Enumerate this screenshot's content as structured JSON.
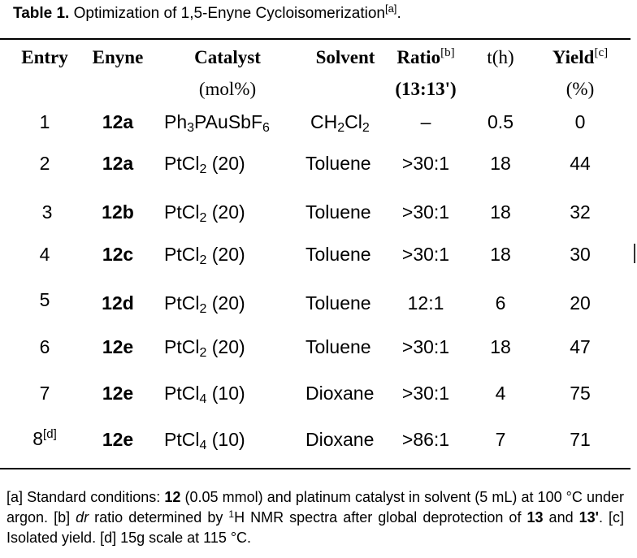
{
  "caption": {
    "label": "Table 1.",
    "text": "Optimization of 1,5-Enyne Cycloisomerization",
    "mark": "[a]",
    "end": "."
  },
  "columns": {
    "entry": "Entry",
    "enyne": "Enyne",
    "catalyst": "Catalyst",
    "catalyst_unit": "(mol%)",
    "solvent": "Solvent",
    "ratio": "Ratio",
    "ratio_mark": "[b]",
    "ratio_sub": "(13:13')",
    "time": "t(h)",
    "yield": "Yield",
    "yield_mark": "[c]",
    "yield_unit": "(%)"
  },
  "rows": [
    {
      "entry": "1",
      "enyne": "12a",
      "ratio": "–",
      "time": "0.5",
      "yield": "0"
    },
    {
      "entry": "2",
      "enyne": "12a",
      "catalyst_load": "(20)",
      "solvent": "Toluene",
      "ratio": ">30:1",
      "time": "18",
      "yield": "44"
    },
    {
      "entry": "3",
      "enyne": "12b",
      "catalyst_load": "(20)",
      "solvent": "Toluene",
      "ratio": ">30:1",
      "time": "18",
      "yield": "32"
    },
    {
      "entry": "4",
      "enyne": "12c",
      "catalyst_load": "(20)",
      "solvent": "Toluene",
      "ratio": ">30:1",
      "time": "18",
      "yield": "30"
    },
    {
      "entry": "5",
      "enyne": "12d",
      "catalyst_load": "(20)",
      "solvent": "Toluene",
      "ratio": "12:1",
      "time": "6",
      "yield": "20"
    },
    {
      "entry": "6",
      "enyne": "12e",
      "catalyst_load": "(20)",
      "solvent": "Toluene",
      "ratio": ">30:1",
      "time": "18",
      "yield": "47"
    },
    {
      "entry": "7",
      "enyne": "12e",
      "catalyst_load": "(10)",
      "solvent": "Dioxane",
      "ratio": ">30:1",
      "time": "4",
      "yield": "75"
    },
    {
      "entry": "8",
      "entry_mark": "[d]",
      "enyne": "12e",
      "catalyst_load": "(10)",
      "solvent": "Dioxane",
      "ratio": ">86:1",
      "time": "7",
      "yield": "71"
    }
  ],
  "footnote": {
    "p1": "[a] Standard conditions: ",
    "b1": "12",
    "p2": " (0.05 mmol) and platinum catalyst in solvent (5 mL) at 100 °C under argon. [b] ",
    "i1": "dr",
    "p3": " ratio determined by ",
    "sup1": "1",
    "p4": "H NMR spectra after global deprotection of ",
    "b2": "13",
    "p5": " and ",
    "b3": "13'",
    "p6": ". [c] Isolated yield. [d] 15g scale at 115 °C."
  }
}
